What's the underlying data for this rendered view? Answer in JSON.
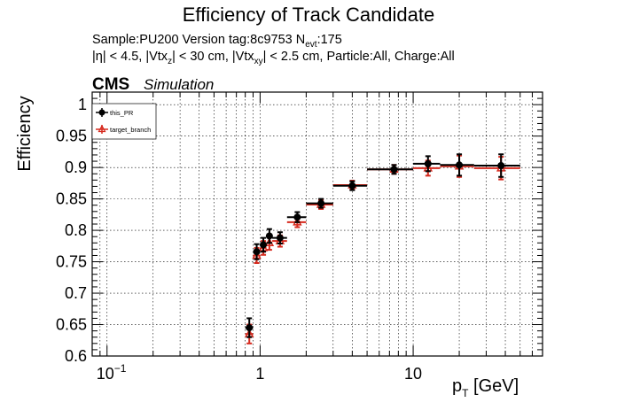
{
  "chart_data": {
    "type": "scatter",
    "title": "Efficiency of Track Candidate",
    "info_line1": {
      "prefix": "Sample:PU200   Version tag:8c9753  N",
      "sub": "evt",
      "suffix": ":175"
    },
    "info_line2": {
      "p1": "|η| < 4.5, |Vtx",
      "s1": "z",
      "p2": "| < 30 cm, |Vtx",
      "s2": "xy",
      "p3": "| < 2.5 cm, Particle:All, Charge:All"
    },
    "cms_label": "CMS",
    "sim_label": "Simulation",
    "ylabel": "Efficiency",
    "xlabel": {
      "main": "p",
      "sub": "T",
      "rest": " [GeV]"
    },
    "x_scale": "log",
    "xlim": [
      0.08,
      70
    ],
    "ylim": [
      0.6,
      1.02
    ],
    "xticks": [
      {
        "value": 0.1,
        "base": "10",
        "exp": "−1"
      },
      {
        "value": 1,
        "label": "1"
      },
      {
        "value": 10,
        "label": "10"
      }
    ],
    "yticks": [
      "0.6",
      "0.65",
      "0.7",
      "0.75",
      "0.8",
      "0.85",
      "0.9",
      "0.95",
      "1"
    ],
    "grid": true,
    "legend_position": "top-left",
    "series": [
      {
        "name": "this_PR",
        "color": "#000000",
        "marker": "circle",
        "points": [
          {
            "x": 0.85,
            "xlo": 0.8,
            "xhi": 0.9,
            "y": 0.645,
            "err": 0.015
          },
          {
            "x": 0.95,
            "xlo": 0.9,
            "xhi": 1.0,
            "y": 0.766,
            "err": 0.012
          },
          {
            "x": 1.05,
            "xlo": 1.0,
            "xhi": 1.1,
            "y": 0.777,
            "err": 0.011
          },
          {
            "x": 1.15,
            "xlo": 1.1,
            "xhi": 1.2,
            "y": 0.791,
            "err": 0.011
          },
          {
            "x": 1.35,
            "xlo": 1.2,
            "xhi": 1.5,
            "y": 0.788,
            "err": 0.009
          },
          {
            "x": 1.75,
            "xlo": 1.5,
            "xhi": 2.0,
            "y": 0.821,
            "err": 0.008
          },
          {
            "x": 2.5,
            "xlo": 2.0,
            "xhi": 3.0,
            "y": 0.843,
            "err": 0.007
          },
          {
            "x": 4.0,
            "xlo": 3.0,
            "xhi": 5.0,
            "y": 0.871,
            "err": 0.007
          },
          {
            "x": 7.5,
            "xlo": 5.0,
            "xhi": 10.0,
            "y": 0.897,
            "err": 0.007
          },
          {
            "x": 12.5,
            "xlo": 10.0,
            "xhi": 15.0,
            "y": 0.906,
            "err": 0.012
          },
          {
            "x": 20.0,
            "xlo": 15.0,
            "xhi": 25.0,
            "y": 0.904,
            "err": 0.017
          },
          {
            "x": 37.5,
            "xlo": 25.0,
            "xhi": 50.0,
            "y": 0.903,
            "err": 0.018
          }
        ]
      },
      {
        "name": "target_branch",
        "color": "#d62a1e",
        "marker": "triangle-open",
        "points": [
          {
            "x": 0.85,
            "xlo": 0.8,
            "xhi": 0.9,
            "y": 0.635,
            "err": 0.015
          },
          {
            "x": 0.95,
            "xlo": 0.9,
            "xhi": 1.0,
            "y": 0.76,
            "err": 0.012
          },
          {
            "x": 1.05,
            "xlo": 1.0,
            "xhi": 1.1,
            "y": 0.772,
            "err": 0.011
          },
          {
            "x": 1.15,
            "xlo": 1.1,
            "xhi": 1.2,
            "y": 0.78,
            "err": 0.011
          },
          {
            "x": 1.35,
            "xlo": 1.2,
            "xhi": 1.5,
            "y": 0.783,
            "err": 0.009
          },
          {
            "x": 1.75,
            "xlo": 1.5,
            "xhi": 2.0,
            "y": 0.813,
            "err": 0.008
          },
          {
            "x": 2.5,
            "xlo": 2.0,
            "xhi": 3.0,
            "y": 0.841,
            "err": 0.007
          },
          {
            "x": 4.0,
            "xlo": 3.0,
            "xhi": 5.0,
            "y": 0.872,
            "err": 0.007
          },
          {
            "x": 7.5,
            "xlo": 5.0,
            "xhi": 10.0,
            "y": 0.897,
            "err": 0.007
          },
          {
            "x": 12.5,
            "xlo": 10.0,
            "xhi": 15.0,
            "y": 0.899,
            "err": 0.012
          },
          {
            "x": 20.0,
            "xlo": 15.0,
            "xhi": 25.0,
            "y": 0.902,
            "err": 0.017
          },
          {
            "x": 37.5,
            "xlo": 25.0,
            "xhi": 50.0,
            "y": 0.899,
            "err": 0.018
          }
        ]
      }
    ]
  }
}
